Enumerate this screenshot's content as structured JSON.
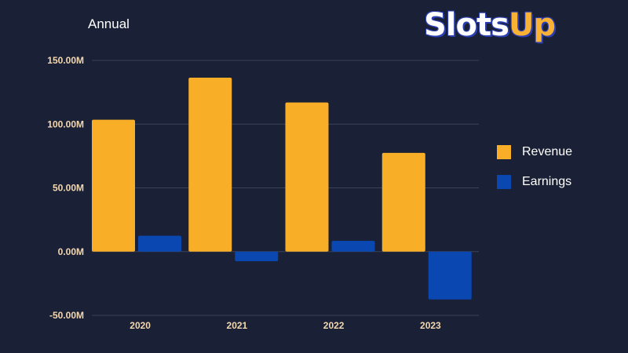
{
  "title": "Annual",
  "logo": {
    "part1": "Slots",
    "part2": "Up"
  },
  "colors": {
    "background": "#1a2035",
    "revenue": "#f9ae27",
    "earnings": "#0a47b0",
    "tick_text": "#f2d7b0",
    "grid": "#3a4258"
  },
  "chart_data": {
    "type": "bar",
    "title": "Annual",
    "categories": [
      "2020",
      "2021",
      "2022",
      "2023"
    ],
    "series": [
      {
        "name": "Revenue",
        "values": [
          103.5,
          136.5,
          117.0,
          77.5
        ]
      },
      {
        "name": "Earnings",
        "values": [
          12.5,
          -7.5,
          8.5,
          -37.5
        ]
      }
    ],
    "y_ticks": [
      "150.00M",
      "100.00M",
      "50.00M",
      "0.00M",
      "-50.00M"
    ],
    "ylim": [
      -50,
      150
    ],
    "grid": true,
    "legend_position": "right"
  }
}
